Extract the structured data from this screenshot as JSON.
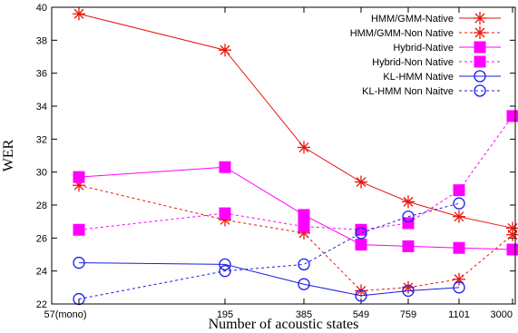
{
  "chart_data": {
    "type": "line",
    "title": "",
    "xlabel": "Number of acoustic states",
    "ylabel": "WER",
    "x_ticks": [
      "57(mono)",
      "195",
      "385",
      "549",
      "759",
      "1101",
      "3000"
    ],
    "x": [
      57,
      195,
      385,
      549,
      759,
      1101,
      3000
    ],
    "y_ticks": [
      22,
      24,
      26,
      28,
      30,
      32,
      34,
      36,
      38,
      40
    ],
    "ylim": [
      22,
      40
    ],
    "legend_position": "top-right",
    "series": [
      {
        "name": "HMM/GMM-Native",
        "color": "#e8150c",
        "dashed": false,
        "marker": "star",
        "points": [
          [
            0,
            39.6
          ],
          [
            1,
            37.4
          ],
          [
            2,
            31.5
          ],
          [
            3,
            29.4
          ],
          [
            4,
            28.2
          ],
          [
            5,
            27.3
          ],
          [
            6,
            26.6
          ]
        ]
      },
      {
        "name": "HMM/GMM-Non Native",
        "color": "#e8150c",
        "dashed": true,
        "marker": "star",
        "points": [
          [
            0,
            29.2
          ],
          [
            1,
            27.1
          ],
          [
            2,
            26.3
          ],
          [
            3,
            22.8
          ],
          [
            4,
            23.0
          ],
          [
            5,
            23.5
          ],
          [
            6,
            26.2
          ]
        ]
      },
      {
        "name": "Hybrid-Native",
        "color": "#ff00ff",
        "dashed": false,
        "marker": "square",
        "points": [
          [
            0,
            29.7
          ],
          [
            1,
            30.3
          ],
          [
            2,
            27.4
          ],
          [
            3,
            25.6
          ],
          [
            4,
            25.5
          ],
          [
            5,
            25.4
          ],
          [
            6,
            25.3
          ]
        ]
      },
      {
        "name": "Hybrid-Non Native",
        "color": "#ff00ff",
        "dashed": true,
        "marker": "square",
        "points": [
          [
            0,
            26.5
          ],
          [
            1,
            27.5
          ],
          [
            2,
            26.7
          ],
          [
            3,
            26.5
          ],
          [
            4,
            26.9
          ],
          [
            5,
            28.9
          ],
          [
            6,
            33.4
          ]
        ]
      },
      {
        "name": "KL-HMM Native",
        "color": "#1a1ae6",
        "dashed": false,
        "marker": "circle",
        "points": [
          [
            0,
            24.5
          ],
          [
            1,
            24.4
          ],
          [
            2,
            23.2
          ],
          [
            3,
            22.5
          ],
          [
            4,
            22.8
          ],
          [
            5,
            23.0
          ]
        ]
      },
      {
        "name": "KL-HMM Non Naitve",
        "color": "#1a1ae6",
        "dashed": true,
        "marker": "circle",
        "points": [
          [
            0,
            22.3
          ],
          [
            1,
            24.0
          ],
          [
            2,
            24.4
          ],
          [
            3,
            26.3
          ],
          [
            4,
            27.3
          ],
          [
            5,
            28.1
          ]
        ]
      }
    ]
  }
}
